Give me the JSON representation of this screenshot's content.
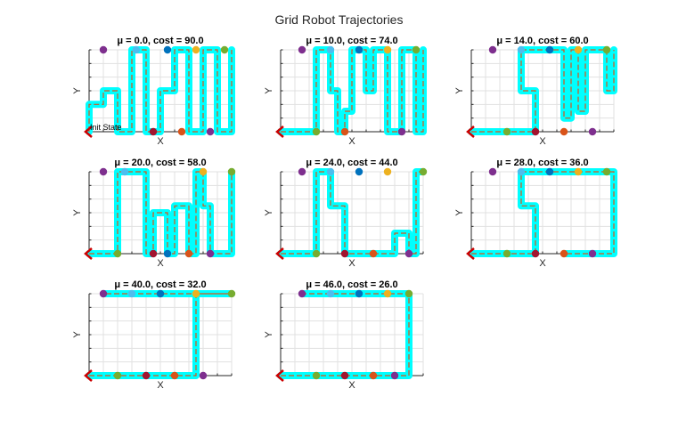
{
  "figure": {
    "title": "Grid Robot Trajectories"
  },
  "colors": {
    "trajectory_band": "#00ffff",
    "trajectory_line": "#d95319",
    "start_marker": "#cc0000",
    "markers": [
      "#7e2f8e",
      "#4dbeee",
      "#0072bd",
      "#edb120",
      "#77ac30",
      "#a2142f",
      "#d95319"
    ]
  },
  "chart_data": [
    {
      "type": "line",
      "title": "μ = 0.0, cost = 90.0",
      "xlabel": "X",
      "ylabel": "Y",
      "xlim": [
        0,
        10
      ],
      "ylim": [
        0,
        6
      ],
      "grid": true,
      "annotation": {
        "text": "Init State",
        "x": 0,
        "y": 0
      },
      "path": [
        [
          0,
          0
        ],
        [
          0,
          2
        ],
        [
          1,
          2
        ],
        [
          1,
          3
        ],
        [
          2,
          3
        ],
        [
          2,
          0
        ],
        [
          3,
          0
        ],
        [
          3,
          6
        ],
        [
          4,
          6
        ],
        [
          4,
          0
        ],
        [
          5,
          0
        ],
        [
          5,
          3
        ],
        [
          6,
          3
        ],
        [
          6,
          6
        ],
        [
          7,
          6
        ],
        [
          7,
          0
        ],
        [
          8,
          0
        ],
        [
          8,
          6
        ],
        [
          9,
          6
        ],
        [
          9,
          0
        ],
        [
          10,
          0
        ],
        [
          10,
          6
        ]
      ],
      "points": [
        {
          "x": 1,
          "y": 6,
          "c": 0
        },
        {
          "x": 3.3,
          "y": 6,
          "c": 1
        },
        {
          "x": 5.5,
          "y": 6,
          "c": 2
        },
        {
          "x": 7.5,
          "y": 6,
          "c": 3
        },
        {
          "x": 9.5,
          "y": 6,
          "c": 4
        },
        {
          "x": 4.5,
          "y": 0,
          "c": 5
        },
        {
          "x": 6.5,
          "y": 0,
          "c": 6
        },
        {
          "x": 8.5,
          "y": 0,
          "c": 0
        }
      ]
    },
    {
      "type": "line",
      "title": "μ = 10.0, cost = 74.0",
      "xlabel": "X",
      "ylabel": "Y",
      "xlim": [
        0,
        10
      ],
      "ylim": [
        0,
        6
      ],
      "grid": true,
      "path": [
        [
          0,
          0
        ],
        [
          2.5,
          0
        ],
        [
          2.5,
          6
        ],
        [
          3.5,
          6
        ],
        [
          3.5,
          3
        ],
        [
          4,
          3
        ],
        [
          4,
          0
        ],
        [
          4.5,
          0
        ],
        [
          4.5,
          1.5
        ],
        [
          5,
          1.5
        ],
        [
          5,
          6
        ],
        [
          6,
          6
        ],
        [
          6,
          3
        ],
        [
          6.5,
          3
        ],
        [
          6.5,
          6
        ],
        [
          7.5,
          6
        ],
        [
          7.5,
          0
        ],
        [
          8.5,
          0
        ],
        [
          8.5,
          6
        ],
        [
          9.5,
          6
        ],
        [
          9.5,
          0
        ],
        [
          10,
          0
        ],
        [
          10,
          6
        ]
      ],
      "points": [
        {
          "x": 1.5,
          "y": 6,
          "c": 0
        },
        {
          "x": 3.5,
          "y": 6,
          "c": 1
        },
        {
          "x": 5.5,
          "y": 6,
          "c": 2
        },
        {
          "x": 7.5,
          "y": 6,
          "c": 3
        },
        {
          "x": 9.5,
          "y": 6,
          "c": 4
        },
        {
          "x": 2.5,
          "y": 0,
          "c": 4
        },
        {
          "x": 4.5,
          "y": 0,
          "c": 6
        },
        {
          "x": 8.5,
          "y": 0,
          "c": 0
        }
      ]
    },
    {
      "type": "line",
      "title": "μ = 14.0, cost = 60.0",
      "xlabel": "X",
      "ylabel": "Y",
      "xlim": [
        0,
        10
      ],
      "ylim": [
        0,
        6
      ],
      "grid": true,
      "path": [
        [
          0,
          0
        ],
        [
          4.5,
          0
        ],
        [
          4.5,
          3
        ],
        [
          3.5,
          3
        ],
        [
          3.5,
          6
        ],
        [
          6.5,
          6
        ],
        [
          6.5,
          1
        ],
        [
          7,
          1
        ],
        [
          7,
          6
        ],
        [
          7.5,
          6
        ],
        [
          7.5,
          1.5
        ],
        [
          8,
          1.5
        ],
        [
          8,
          6
        ],
        [
          9.5,
          6
        ],
        [
          9.5,
          3
        ],
        [
          10,
          3
        ],
        [
          10,
          6
        ]
      ],
      "points": [
        {
          "x": 1.5,
          "y": 6,
          "c": 0
        },
        {
          "x": 3.5,
          "y": 6,
          "c": 1
        },
        {
          "x": 5.5,
          "y": 6,
          "c": 2
        },
        {
          "x": 7.5,
          "y": 6,
          "c": 3
        },
        {
          "x": 9.5,
          "y": 6,
          "c": 4
        },
        {
          "x": 2.5,
          "y": 0,
          "c": 4
        },
        {
          "x": 4.5,
          "y": 0,
          "c": 5
        },
        {
          "x": 6.5,
          "y": 0,
          "c": 6
        },
        {
          "x": 8.5,
          "y": 0,
          "c": 0
        }
      ]
    },
    {
      "type": "line",
      "title": "μ = 20.0, cost = 58.0",
      "xlabel": "X",
      "ylabel": "Y",
      "xlim": [
        0,
        10
      ],
      "ylim": [
        0,
        6
      ],
      "grid": true,
      "path": [
        [
          0,
          0
        ],
        [
          2,
          0
        ],
        [
          2,
          6
        ],
        [
          4,
          6
        ],
        [
          4,
          0
        ],
        [
          4.5,
          0
        ],
        [
          4.5,
          3
        ],
        [
          5.5,
          3
        ],
        [
          5.5,
          0
        ],
        [
          6,
          0
        ],
        [
          6,
          3.5
        ],
        [
          7,
          3.5
        ],
        [
          7,
          0
        ],
        [
          7.5,
          0
        ],
        [
          7.5,
          6
        ],
        [
          8,
          6
        ],
        [
          8,
          3.5
        ],
        [
          8.5,
          3.5
        ],
        [
          8.5,
          0
        ],
        [
          10,
          0
        ],
        [
          10,
          6
        ]
      ],
      "points": [
        {
          "x": 1,
          "y": 6,
          "c": 0
        },
        {
          "x": 2.5,
          "y": 6,
          "c": 1
        },
        {
          "x": 8,
          "y": 6,
          "c": 3
        },
        {
          "x": 10,
          "y": 6,
          "c": 4
        },
        {
          "x": 2,
          "y": 0,
          "c": 4
        },
        {
          "x": 4.5,
          "y": 0,
          "c": 5
        },
        {
          "x": 5.5,
          "y": 0,
          "c": 2
        },
        {
          "x": 7,
          "y": 0,
          "c": 6
        },
        {
          "x": 8.5,
          "y": 0,
          "c": 0
        }
      ]
    },
    {
      "type": "line",
      "title": "μ = 24.0, cost = 44.0",
      "xlabel": "X",
      "ylabel": "Y",
      "xlim": [
        0,
        10
      ],
      "ylim": [
        0,
        6
      ],
      "grid": true,
      "path": [
        [
          0,
          0
        ],
        [
          2.5,
          0
        ],
        [
          2.5,
          6
        ],
        [
          3.5,
          6
        ],
        [
          3.5,
          3.5
        ],
        [
          4.5,
          3.5
        ],
        [
          4.5,
          0
        ],
        [
          8,
          0
        ],
        [
          8,
          1.5
        ],
        [
          9,
          1.5
        ],
        [
          9,
          0
        ],
        [
          9.5,
          0
        ],
        [
          9.5,
          6
        ],
        [
          10,
          6
        ]
      ],
      "points": [
        {
          "x": 1.5,
          "y": 6,
          "c": 0
        },
        {
          "x": 3.5,
          "y": 6,
          "c": 1
        },
        {
          "x": 5.5,
          "y": 6,
          "c": 2
        },
        {
          "x": 7.5,
          "y": 6,
          "c": 3
        },
        {
          "x": 10,
          "y": 6,
          "c": 4
        },
        {
          "x": 2.5,
          "y": 0,
          "c": 4
        },
        {
          "x": 4.5,
          "y": 0,
          "c": 5
        },
        {
          "x": 6.5,
          "y": 0,
          "c": 6
        },
        {
          "x": 9,
          "y": 0,
          "c": 0
        }
      ]
    },
    {
      "type": "line",
      "title": "μ = 28.0, cost = 36.0",
      "xlabel": "X",
      "ylabel": "Y",
      "xlim": [
        0,
        10
      ],
      "ylim": [
        0,
        6
      ],
      "grid": true,
      "path": [
        [
          0,
          0
        ],
        [
          4.5,
          0
        ],
        [
          4.5,
          3.5
        ],
        [
          3.5,
          3.5
        ],
        [
          3.5,
          6
        ],
        [
          10,
          6
        ],
        [
          10,
          0
        ],
        [
          6.5,
          0
        ]
      ],
      "points": [
        {
          "x": 1.5,
          "y": 6,
          "c": 0
        },
        {
          "x": 3.5,
          "y": 6,
          "c": 1
        },
        {
          "x": 5.5,
          "y": 6,
          "c": 2
        },
        {
          "x": 7.5,
          "y": 6,
          "c": 3
        },
        {
          "x": 9.5,
          "y": 6,
          "c": 4
        },
        {
          "x": 2.5,
          "y": 0,
          "c": 4
        },
        {
          "x": 4.5,
          "y": 0,
          "c": 5
        },
        {
          "x": 6.5,
          "y": 0,
          "c": 6
        },
        {
          "x": 8.5,
          "y": 0,
          "c": 0
        }
      ]
    },
    {
      "type": "line",
      "title": "μ = 40.0, cost = 32.0",
      "xlabel": "X",
      "ylabel": "Y",
      "xlim": [
        0,
        10
      ],
      "ylim": [
        0,
        6
      ],
      "grid": true,
      "path": [
        [
          0,
          0
        ],
        [
          7.5,
          0
        ],
        [
          7.5,
          6
        ],
        [
          10,
          6
        ],
        [
          1,
          6
        ]
      ],
      "points": [
        {
          "x": 1,
          "y": 6,
          "c": 0
        },
        {
          "x": 3,
          "y": 6,
          "c": 1
        },
        {
          "x": 5,
          "y": 6,
          "c": 2
        },
        {
          "x": 7.5,
          "y": 6,
          "c": 3
        },
        {
          "x": 10,
          "y": 6,
          "c": 4
        },
        {
          "x": 2,
          "y": 0,
          "c": 4
        },
        {
          "x": 4,
          "y": 0,
          "c": 5
        },
        {
          "x": 6,
          "y": 0,
          "c": 6
        },
        {
          "x": 8,
          "y": 0,
          "c": 0
        }
      ]
    },
    {
      "type": "line",
      "title": "μ = 46.0, cost = 26.0",
      "xlabel": "X",
      "ylabel": "Y",
      "xlim": [
        0,
        10
      ],
      "ylim": [
        0,
        6
      ],
      "grid": true,
      "path": [
        [
          0,
          0
        ],
        [
          9,
          0
        ],
        [
          9,
          6
        ],
        [
          1.5,
          6
        ]
      ],
      "points": [
        {
          "x": 1.5,
          "y": 6,
          "c": 0
        },
        {
          "x": 3.5,
          "y": 6,
          "c": 1
        },
        {
          "x": 5.5,
          "y": 6,
          "c": 2
        },
        {
          "x": 7.5,
          "y": 6,
          "c": 3
        },
        {
          "x": 9,
          "y": 6,
          "c": 4
        },
        {
          "x": 2.5,
          "y": 0,
          "c": 4
        },
        {
          "x": 4.5,
          "y": 0,
          "c": 5
        },
        {
          "x": 6.5,
          "y": 0,
          "c": 6
        },
        {
          "x": 8,
          "y": 0,
          "c": 0
        }
      ]
    }
  ]
}
